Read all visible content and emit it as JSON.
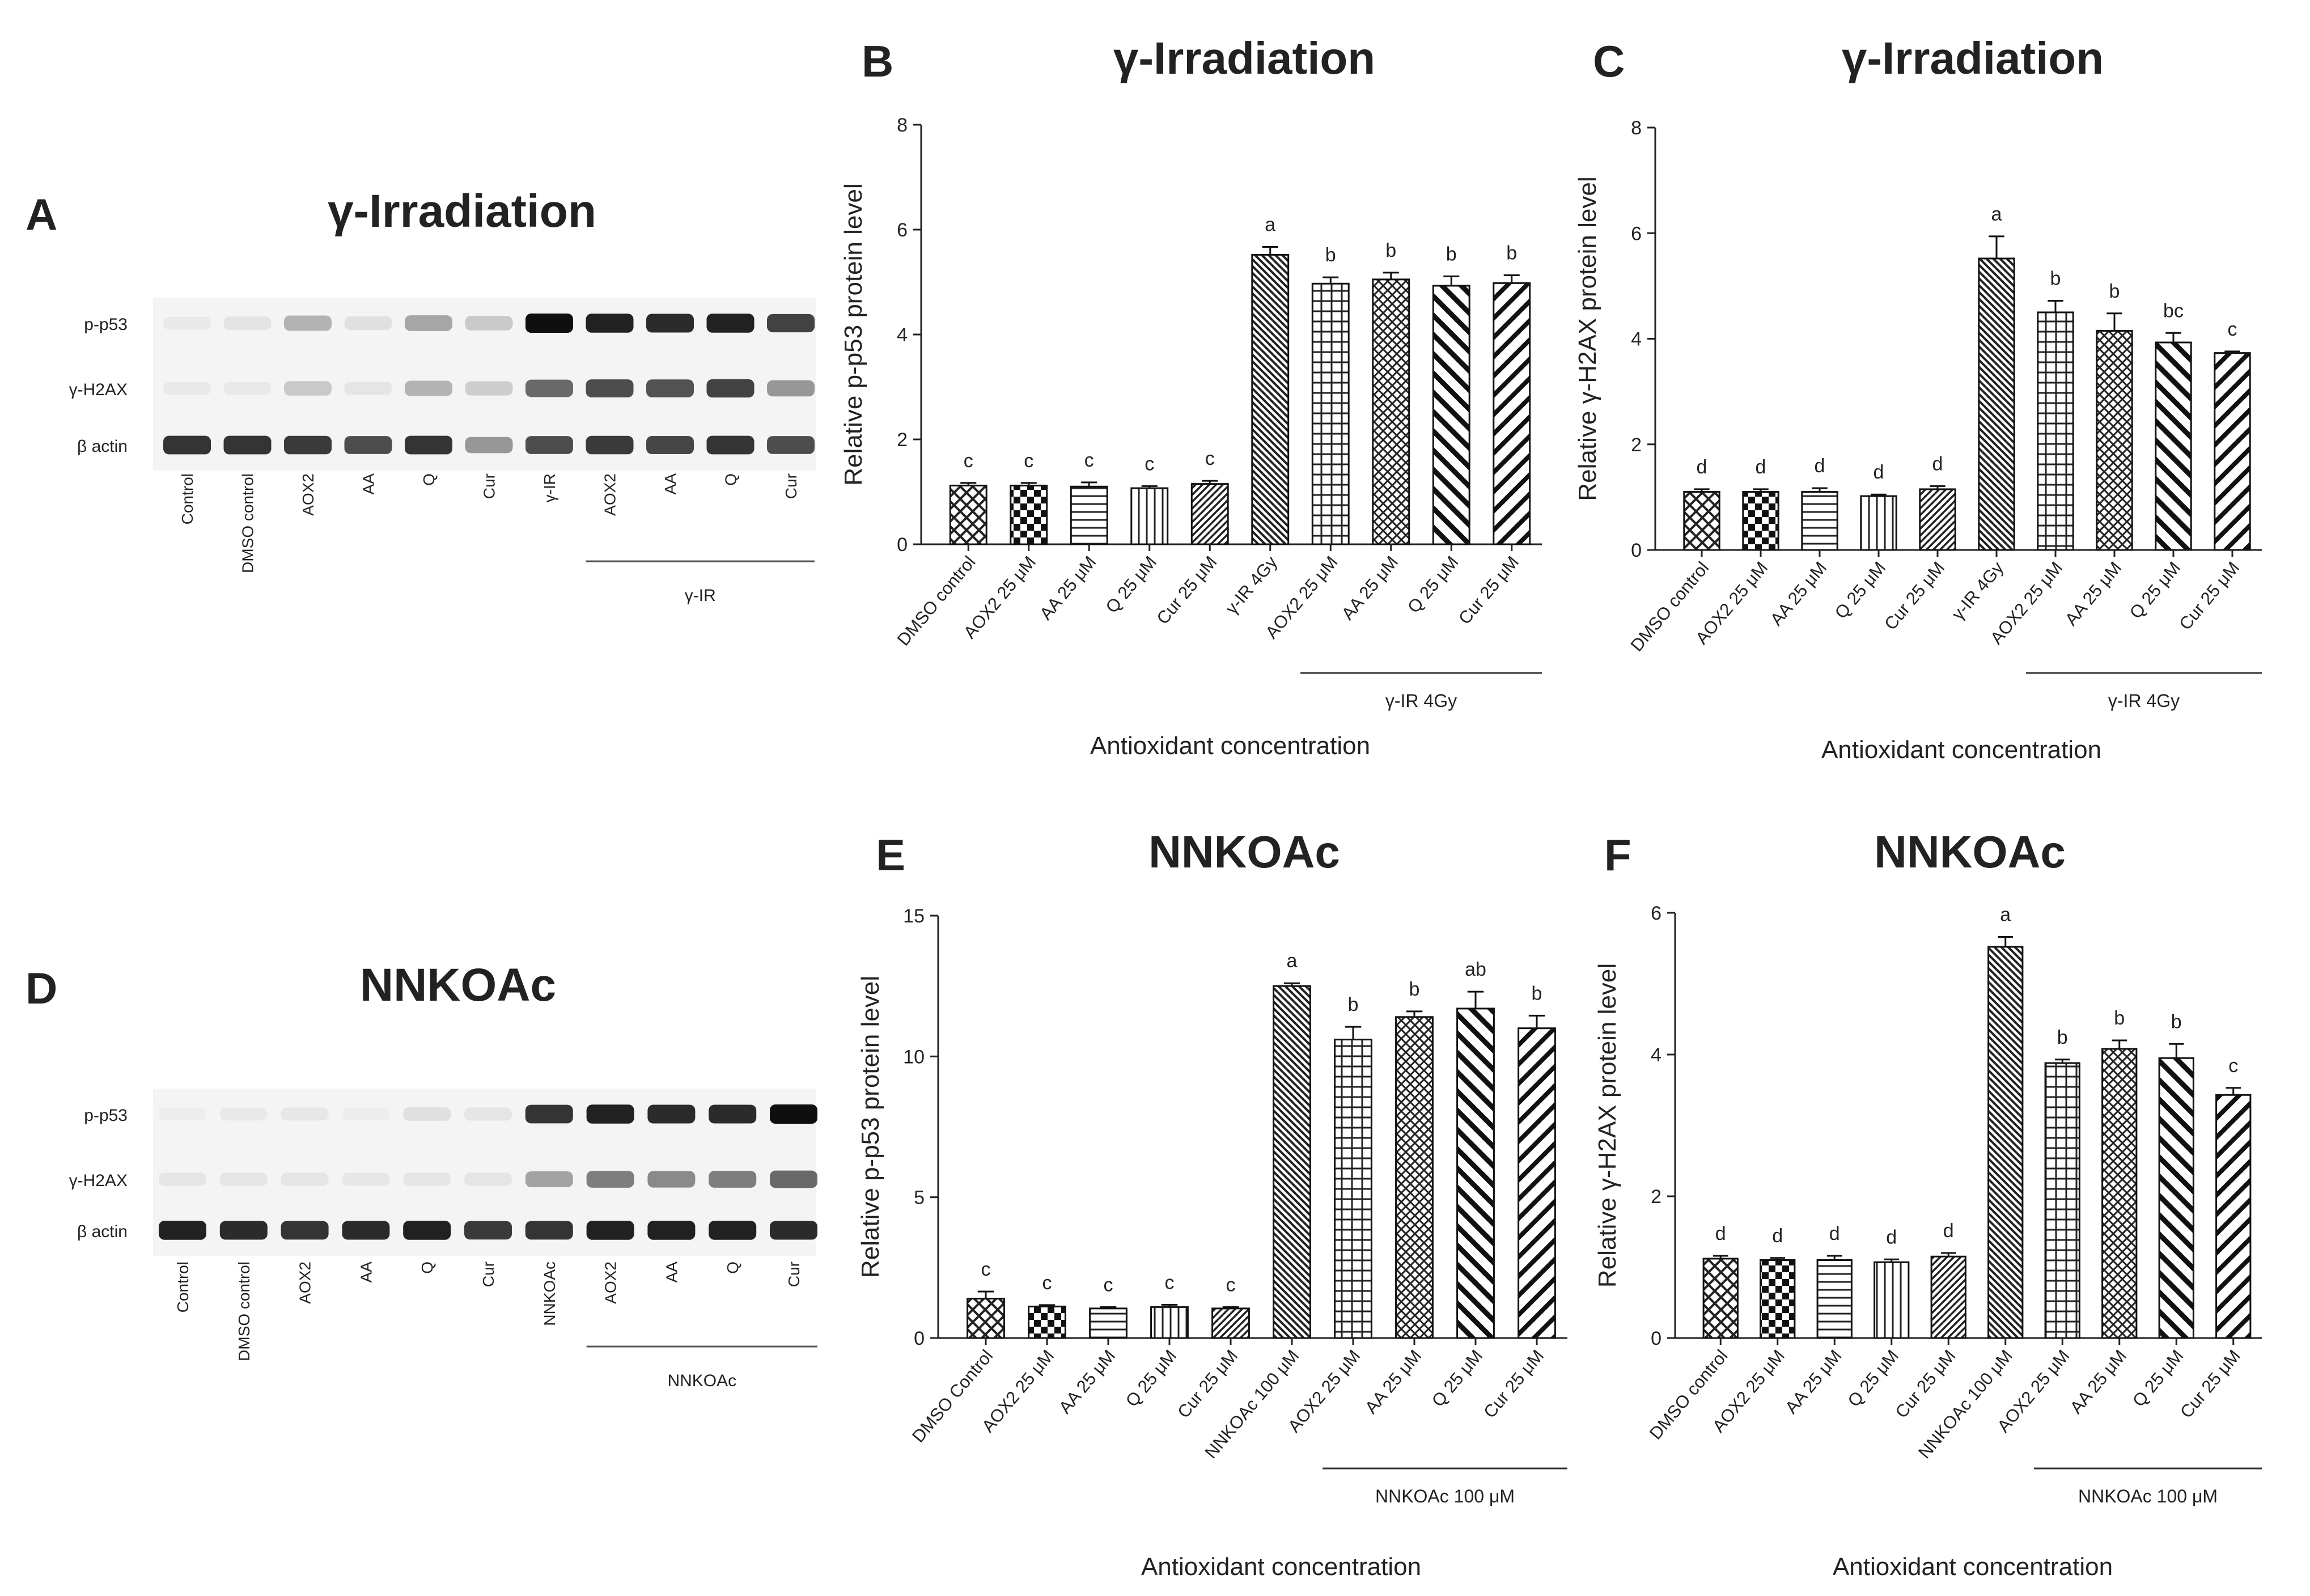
{
  "figure": {
    "panel_A": {
      "letter": "A",
      "title": "γ-Irradiation",
      "rows": [
        "p-p53",
        "γ-H2AX",
        "β actin"
      ],
      "lanes": [
        "Control",
        "DMSO control",
        "AOX2",
        "AA",
        "Q",
        "Cur",
        "γ-IR",
        "AOX2",
        "AA",
        "Q",
        "Cur"
      ],
      "group_label": "γ-IR",
      "intensity": [
        [
          0.06,
          0.12,
          0.42,
          0.15,
          0.48,
          0.3,
          1.0,
          0.95,
          0.92,
          0.95,
          0.85
        ],
        [
          0.06,
          0.06,
          0.3,
          0.1,
          0.42,
          0.28,
          0.72,
          0.82,
          0.8,
          0.85,
          0.55
        ],
        [
          0.9,
          0.9,
          0.88,
          0.82,
          0.9,
          0.55,
          0.82,
          0.88,
          0.84,
          0.9,
          0.82
        ]
      ]
    },
    "panel_D": {
      "letter": "D",
      "title": "NNKOAc",
      "rows": [
        "p-p53",
        "γ-H2AX",
        "β actin"
      ],
      "lanes": [
        "Control",
        "DMSO control",
        "AOX2",
        "AA",
        "Q",
        "Cur",
        "NNKOAc",
        "AOX2",
        "AA",
        "Q",
        "Cur"
      ],
      "group_label": "NNKOAc",
      "intensity": [
        [
          0.02,
          0.06,
          0.08,
          0.03,
          0.15,
          0.1,
          0.9,
          0.95,
          0.92,
          0.92,
          1.0
        ],
        [
          0.1,
          0.1,
          0.1,
          0.08,
          0.1,
          0.1,
          0.5,
          0.65,
          0.6,
          0.65,
          0.72
        ],
        [
          0.95,
          0.92,
          0.9,
          0.92,
          0.95,
          0.88,
          0.9,
          0.95,
          0.95,
          0.95,
          0.92
        ]
      ]
    }
  },
  "chart_data": [
    {
      "panel": "B",
      "type": "bar",
      "title": "γ-Irradiation",
      "ylabel": "Relative p-p53 protein level",
      "xlabel": "Antioxidant concentration",
      "ylim": [
        0,
        8
      ],
      "yticks": [
        0,
        2,
        4,
        6,
        8
      ],
      "categories": [
        "DMSO control",
        "AOX2 25 μM",
        "AA 25 μM",
        "Q 25 μM",
        "Cur 25 μM",
        "γ-IR 4Gy",
        "AOX2 25 μM",
        "AA 25 μM",
        "Q 25 μM",
        "Cur 25 μM"
      ],
      "values": [
        1.12,
        1.12,
        1.1,
        1.07,
        1.15,
        5.52,
        4.97,
        5.05,
        4.93,
        4.98
      ],
      "errors": [
        0.05,
        0.05,
        0.08,
        0.04,
        0.06,
        0.15,
        0.12,
        0.13,
        0.18,
        0.15
      ],
      "sig_letters": [
        "c",
        "c",
        "c",
        "c",
        "c",
        "a",
        "b",
        "b",
        "b",
        "b"
      ],
      "patterns": [
        "cross",
        "checker",
        "hlines",
        "vlines",
        "diag",
        "diagdense",
        "grid",
        "crossdense",
        "diagwide",
        "diagbold"
      ],
      "group_label": "γ-IR 4Gy",
      "group_range": [
        6,
        9
      ]
    },
    {
      "panel": "C",
      "type": "bar",
      "title": "γ-Irradiation",
      "ylabel": "Relative γ-H2AX protein level",
      "xlabel": "Antioxidant concentration",
      "ylim": [
        0,
        8
      ],
      "yticks": [
        0,
        2,
        4,
        6,
        8
      ],
      "categories": [
        "DMSO control",
        "AOX2 25 μM",
        "AA 25 μM",
        "Q 25 μM",
        "Cur 25 μM",
        "γ-IR 4Gy",
        "AOX2 25 μM",
        "AA 25 μM",
        "Q 25 μM",
        "Cur 25 μM"
      ],
      "values": [
        1.1,
        1.1,
        1.1,
        1.02,
        1.15,
        5.52,
        4.5,
        4.15,
        3.93,
        3.73
      ],
      "errors": [
        0.05,
        0.05,
        0.07,
        0.03,
        0.06,
        0.42,
        0.22,
        0.33,
        0.18,
        0.03
      ],
      "sig_letters": [
        "d",
        "d",
        "d",
        "d",
        "d",
        "a",
        "b",
        "b",
        "bc",
        "c"
      ],
      "patterns": [
        "cross",
        "checker",
        "hlines",
        "vlines",
        "diag",
        "diagdense",
        "grid",
        "crossdense",
        "diagwide",
        "diagbold"
      ],
      "group_label": "γ-IR 4Gy",
      "group_range": [
        6,
        9
      ]
    },
    {
      "panel": "E",
      "type": "bar",
      "title": "NNKOAc",
      "ylabel": "Relative p-p53 protein level",
      "xlabel": "Antioxidant concentration",
      "ylim": [
        0,
        15
      ],
      "yticks": [
        0,
        5,
        10,
        15
      ],
      "categories": [
        "DMSO Control",
        "AOX2 25 μM",
        "AA 25 μM",
        "Q 25 μM",
        "Cur 25 μM",
        "NNKOAc 100 μM",
        "AOX2 25 μM",
        "AA 25 μM",
        "Q 25 μM",
        "Cur 25 μM"
      ],
      "values": [
        1.4,
        1.12,
        1.05,
        1.1,
        1.05,
        12.5,
        10.6,
        11.4,
        11.7,
        11.0
      ],
      "errors": [
        0.25,
        0.05,
        0.05,
        0.08,
        0.05,
        0.1,
        0.45,
        0.2,
        0.6,
        0.45
      ],
      "sig_letters": [
        "c",
        "c",
        "c",
        "c",
        "c",
        "a",
        "b",
        "b",
        "ab",
        "b"
      ],
      "patterns": [
        "cross",
        "checker",
        "hlines",
        "vlines",
        "diag",
        "diagdense",
        "grid",
        "crossdense",
        "diagwide",
        "diagbold"
      ],
      "group_label": "NNKOAc 100 μM",
      "group_range": [
        6,
        9
      ]
    },
    {
      "panel": "F",
      "type": "bar",
      "title": "NNKOAc",
      "ylabel": "Relative γ-H2AX protein level",
      "xlabel": "Antioxidant concentration",
      "ylim": [
        0,
        6
      ],
      "yticks": [
        0,
        2,
        4,
        6
      ],
      "categories": [
        "DMSO control",
        "AOX2 25 μM",
        "AA 25 μM",
        "Q 25 μM",
        "Cur 25 μM",
        "NNKOAc 100 μM",
        "AOX2 25 μM",
        "AA 25 μM",
        "Q 25 μM",
        "Cur 25 μM"
      ],
      "values": [
        1.12,
        1.1,
        1.1,
        1.07,
        1.15,
        5.52,
        3.88,
        4.08,
        3.95,
        3.43
      ],
      "errors": [
        0.04,
        0.03,
        0.06,
        0.04,
        0.05,
        0.14,
        0.05,
        0.12,
        0.2,
        0.1
      ],
      "sig_letters": [
        "d",
        "d",
        "d",
        "d",
        "d",
        "a",
        "b",
        "b",
        "b",
        "c"
      ],
      "patterns": [
        "cross",
        "checker",
        "hlines",
        "vlines",
        "diag",
        "diagdense",
        "grid",
        "crossdense",
        "diagwide",
        "diagbold"
      ],
      "group_label": "NNKOAc 100 μM",
      "group_range": [
        6,
        9
      ]
    }
  ]
}
